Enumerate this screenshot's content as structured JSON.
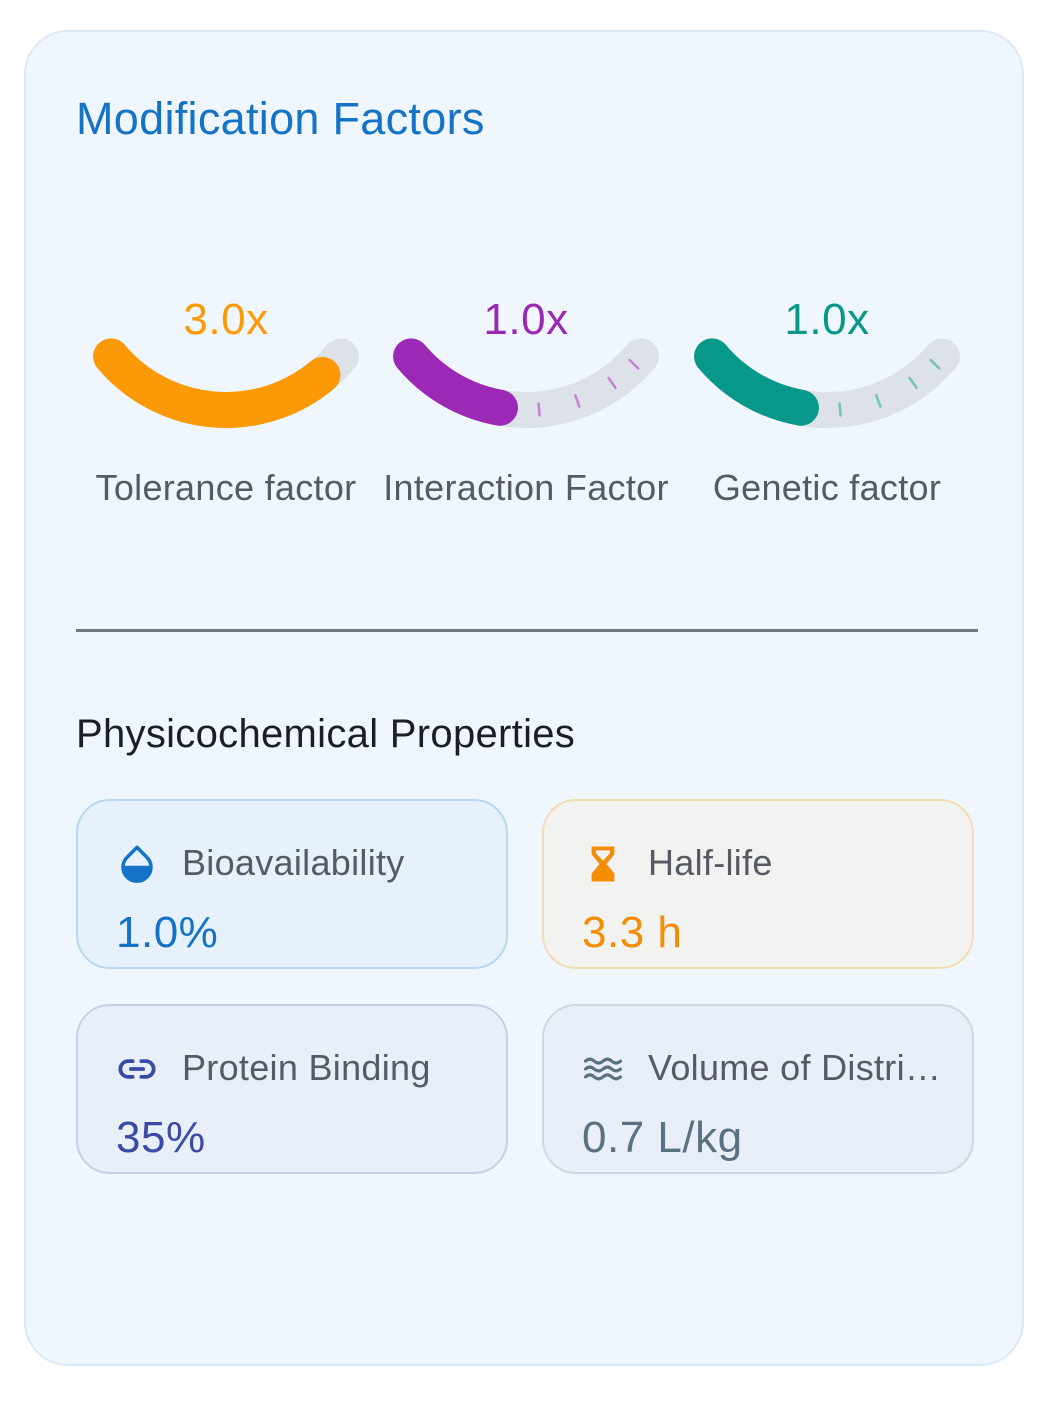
{
  "card": {
    "title": "Modification Factors"
  },
  "gauges": [
    {
      "value_text": "3.0x",
      "label": "Tolerance factor",
      "fill_fraction": 0.9,
      "color": "#fb9a06",
      "tick_color": "#f2c37a"
    },
    {
      "value_text": "1.0x",
      "label": "Interaction Factor",
      "fill_fraction": 0.4,
      "color": "#9b29b5",
      "tick_color": "#c780d6"
    },
    {
      "value_text": "1.0x",
      "label": "Genetic factor",
      "fill_fraction": 0.4,
      "color": "#07988a",
      "tick_color": "#72c2b8"
    }
  ],
  "section": {
    "title": "Physicochemical Properties"
  },
  "properties": [
    {
      "icon": "water-drop-icon",
      "label": "Bioavailability",
      "value": "1.0%",
      "color": "#1473c7"
    },
    {
      "icon": "hourglass-icon",
      "label": "Half-life",
      "value": "3.3 h",
      "color": "#f48c06"
    },
    {
      "icon": "link-icon",
      "label": "Protein Binding",
      "value": "35%",
      "color": "#3b4ba5"
    },
    {
      "icon": "waves-icon",
      "label": "Volume of Distribution",
      "value": "0.7 L/kg",
      "color": "#5b7080"
    }
  ],
  "colors": {
    "gauge_track": "#dde1e8",
    "card_background": "#f0f6fe",
    "title": "#1473c7"
  }
}
